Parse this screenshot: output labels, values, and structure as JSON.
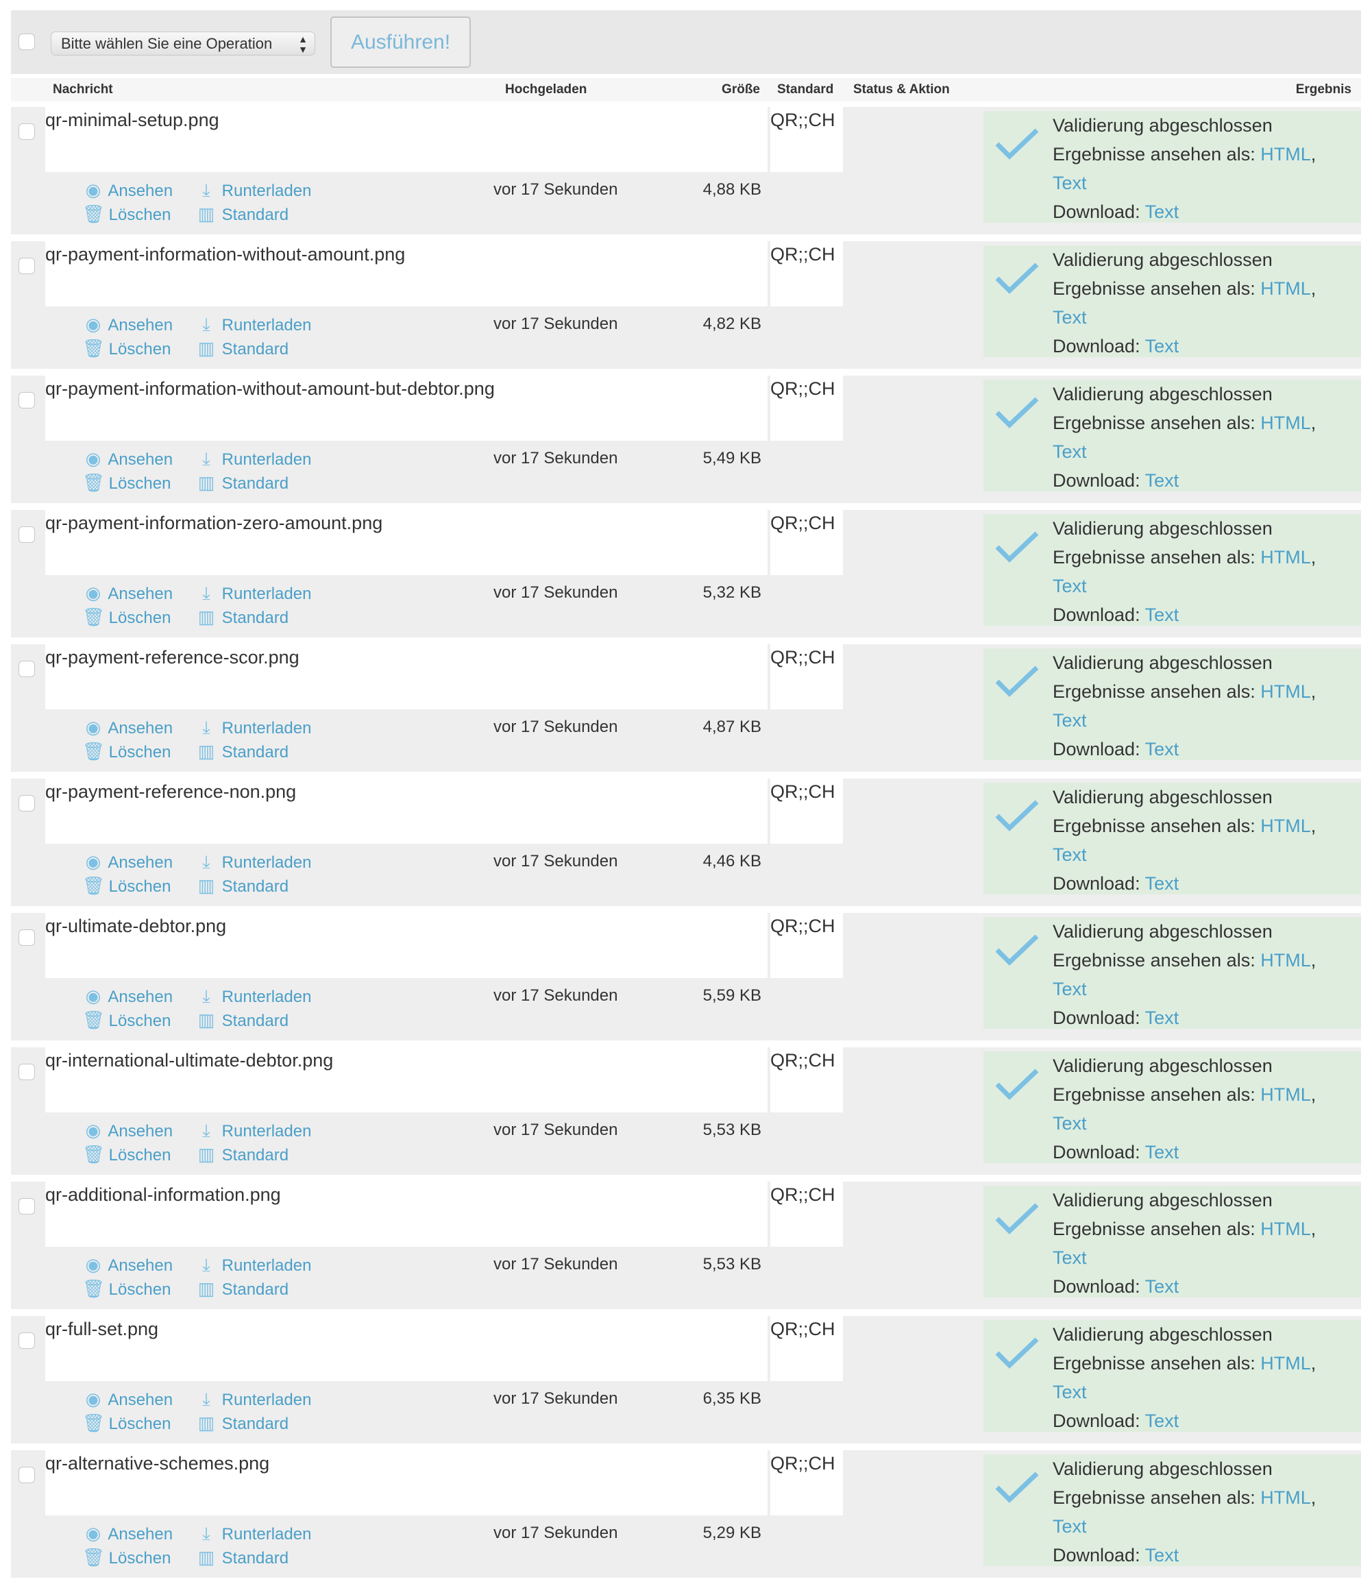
{
  "toolbar": {
    "operation_select": "Bitte wählen Sie eine Operation",
    "run_button": "Ausführen!"
  },
  "header": {
    "message": "Nachricht",
    "uploaded": "Hochgeladen",
    "size": "Größe",
    "standard": "Standard",
    "status": "Status & Aktion",
    "result": "Ergebnis"
  },
  "labels": {
    "view": "Ansehen",
    "download": "Runterladen",
    "delete": "Löschen",
    "standard": "Standard",
    "validation_done": "Validierung abgeschlossen",
    "view_results_as": "Ergebnisse ansehen als:",
    "html": "HTML",
    "text": "Text",
    "download_label": "Download:",
    "comma": ","
  },
  "colors": {
    "link": "#4a9fc8",
    "result_bg": "#dfeddf",
    "icon": "#7cc0e4"
  },
  "rows": [
    {
      "name": "qr-minimal-setup.png",
      "uploaded": "vor 17 Sekunden",
      "size": "4,88 KB",
      "standard": "QR;;CH"
    },
    {
      "name": "qr-payment-information-without-amount.png",
      "uploaded": "vor 17 Sekunden",
      "size": "4,82 KB",
      "standard": "QR;;CH"
    },
    {
      "name": "qr-payment-information-without-amount-but-debtor.png",
      "uploaded": "vor 17 Sekunden",
      "size": "5,49 KB",
      "standard": "QR;;CH"
    },
    {
      "name": "qr-payment-information-zero-amount.png",
      "uploaded": "vor 17 Sekunden",
      "size": "5,32 KB",
      "standard": "QR;;CH"
    },
    {
      "name": "qr-payment-reference-scor.png",
      "uploaded": "vor 17 Sekunden",
      "size": "4,87 KB",
      "standard": "QR;;CH"
    },
    {
      "name": "qr-payment-reference-non.png",
      "uploaded": "vor 17 Sekunden",
      "size": "4,46 KB",
      "standard": "QR;;CH"
    },
    {
      "name": "qr-ultimate-debtor.png",
      "uploaded": "vor 17 Sekunden",
      "size": "5,59 KB",
      "standard": "QR;;CH"
    },
    {
      "name": "qr-international-ultimate-debtor.png",
      "uploaded": "vor 17 Sekunden",
      "size": "5,53 KB",
      "standard": "QR;;CH"
    },
    {
      "name": "qr-additional-information.png",
      "uploaded": "vor 17 Sekunden",
      "size": "5,53 KB",
      "standard": "QR;;CH"
    },
    {
      "name": "qr-full-set.png",
      "uploaded": "vor 17 Sekunden",
      "size": "6,35 KB",
      "standard": "QR;;CH"
    },
    {
      "name": "qr-alternative-schemes.png",
      "uploaded": "vor 17 Sekunden",
      "size": "5,29 KB",
      "standard": "QR;;CH"
    }
  ]
}
